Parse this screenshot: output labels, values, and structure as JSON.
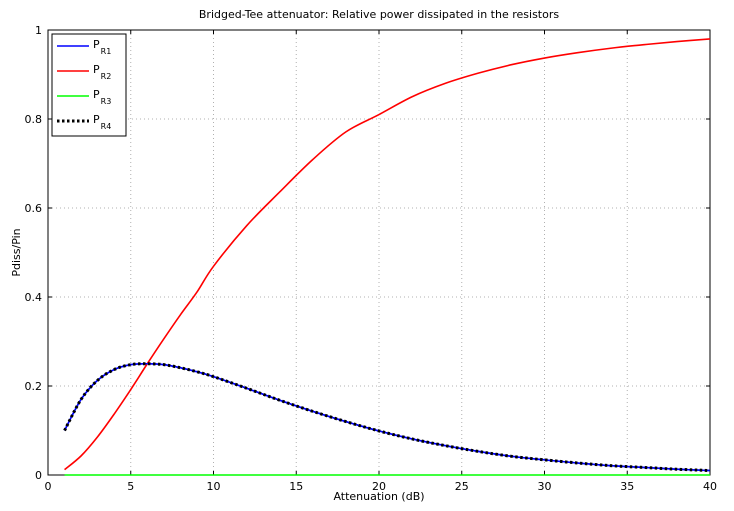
{
  "chart_data": {
    "type": "line",
    "title": "Bridged-Tee attenuator: Relative power dissipated in the resistors",
    "xlabel": "Attenuation (dB)",
    "ylabel": "Pdiss/Pin",
    "xlim": [
      0,
      40
    ],
    "ylim": [
      0,
      1
    ],
    "xticks": [
      0,
      5,
      10,
      15,
      20,
      25,
      30,
      35,
      40
    ],
    "yticks": [
      0,
      0.2,
      0.4,
      0.6,
      0.8,
      1
    ],
    "xtick_labels": [
      "0",
      "5",
      "10",
      "15",
      "20",
      "25",
      "30",
      "35",
      "40"
    ],
    "ytick_labels": [
      "0",
      "0.2",
      "0.4",
      "0.6",
      "0.8",
      "1"
    ],
    "grid": true,
    "legend_position": "top-left",
    "x": [
      1,
      2,
      3,
      4,
      5,
      6,
      7,
      8,
      9,
      10,
      12,
      14,
      16,
      18,
      20,
      22,
      24,
      26,
      28,
      30,
      32,
      34,
      36,
      38,
      40
    ],
    "series": [
      {
        "name": "P",
        "subscript": "R1",
        "color": "#0000ff",
        "style": "solid",
        "values": [
          0.1,
          0.17,
          0.213,
          0.237,
          0.248,
          0.25,
          0.248,
          0.241,
          0.232,
          0.221,
          0.195,
          0.168,
          0.143,
          0.12,
          0.099,
          0.081,
          0.066,
          0.053,
          0.042,
          0.034,
          0.027,
          0.021,
          0.017,
          0.013,
          0.01
        ]
      },
      {
        "name": "P",
        "subscript": "R2",
        "color": "#ff0000",
        "style": "solid",
        "values": [
          0.012,
          0.043,
          0.086,
          0.137,
          0.192,
          0.25,
          0.306,
          0.36,
          0.411,
          0.469,
          0.56,
          0.636,
          0.709,
          0.771,
          0.81,
          0.85,
          0.88,
          0.903,
          0.922,
          0.937,
          0.949,
          0.959,
          0.967,
          0.974,
          0.98
        ]
      },
      {
        "name": "P",
        "subscript": "R3",
        "color": "#00ff00",
        "style": "solid",
        "values": [
          0,
          0,
          0,
          0,
          0,
          0,
          0,
          0,
          0,
          0,
          0,
          0,
          0,
          0,
          0,
          0,
          0,
          0,
          0,
          0,
          0,
          0,
          0,
          0,
          0
        ]
      },
      {
        "name": "P",
        "subscript": "R4",
        "color": "#000000",
        "style": "dotted",
        "values": [
          0.1,
          0.17,
          0.213,
          0.237,
          0.248,
          0.25,
          0.248,
          0.241,
          0.232,
          0.221,
          0.195,
          0.168,
          0.143,
          0.12,
          0.099,
          0.081,
          0.066,
          0.053,
          0.042,
          0.034,
          0.027,
          0.021,
          0.017,
          0.013,
          0.01
        ]
      }
    ]
  }
}
